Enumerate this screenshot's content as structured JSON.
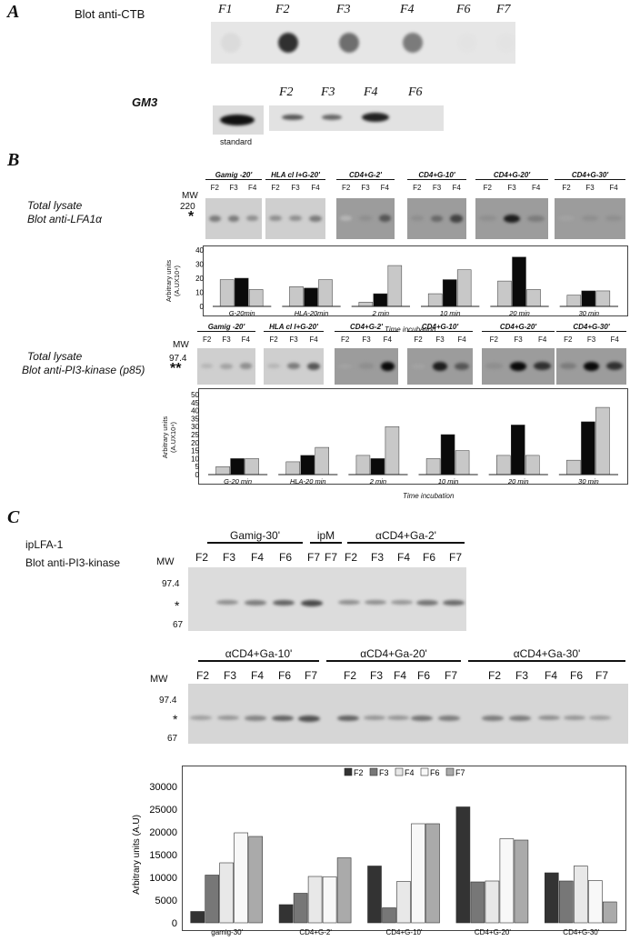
{
  "panelA": {
    "label": "A",
    "blot_title": "Blot anti-CTB",
    "dot_lanes": [
      "F1",
      "F2",
      "F3",
      "F4",
      "F6",
      "F7"
    ],
    "dot_intensity": [
      0.15,
      0.95,
      0.75,
      0.7,
      0.02,
      0.02
    ],
    "gm3_label": "GM3",
    "gm3_lanes": [
      "F2",
      "F3",
      "F4",
      "F6"
    ],
    "standard_label": "standard"
  },
  "panelB": {
    "label": "B",
    "lysate1": "Total lysate",
    "blot1": "Blot anti-LFA1α",
    "lysate2": "Total lysate",
    "blot2": "Blot anti-PI3-kinase (p85)",
    "mw": "MW",
    "mw_220": "220",
    "mw_974": "97.4",
    "star1": "*",
    "star2": "**",
    "groups1": [
      "Gamig -20'",
      "HLA cl I+G-20'",
      "CD4+G-2'",
      "CD4+G-10'",
      "CD4+G-20'",
      "CD4+G-30'"
    ],
    "groups2": [
      "Gamig -20'",
      "HLA cl I+G-20'",
      "CD4+G-2'",
      "CD4+G-10'",
      "CD4+G-20'",
      "CD4+G-30'"
    ],
    "lanes": [
      "F2",
      "F3",
      "F4"
    ],
    "ylabel1": "Arbitrary units (A.UX10⁴)",
    "ylabel2": "Arbitrary units (A.UX10⁴)",
    "xlabel": "Time incubation"
  },
  "panelC": {
    "label": "C",
    "ip": "ipLFA-1",
    "blot": "Blot anti-PI3-kinase",
    "mw": "MW",
    "mw_974": "97.4",
    "mw_67": "67",
    "star": "*",
    "row1_groups": [
      "Gamig-30'",
      "ipM",
      "αCD4+Ga-2'"
    ],
    "row1_lanes": [
      "F2",
      "F3",
      "F4",
      "F6",
      "F7",
      "F7",
      "F2",
      "F3",
      "F4",
      "F6",
      "F7"
    ],
    "row2_groups": [
      "αCD4+Ga-10'",
      "αCD4+Ga-20'",
      "αCD4+Ga-30'"
    ],
    "row2_lanes": [
      "F2",
      "F3",
      "F4",
      "F6",
      "F7",
      "F2",
      "F3",
      "F4",
      "F6",
      "F7",
      "F2",
      "F3",
      "F4",
      "F6",
      "F7"
    ]
  },
  "chart_data": [
    {
      "type": "bar",
      "categories": [
        "G-20min",
        "HLA-20min",
        "2 min",
        "10 min",
        "20 min",
        "30 min"
      ],
      "series": [
        {
          "name": "F2",
          "values": [
            19,
            14,
            3,
            9,
            18,
            8
          ]
        },
        {
          "name": "F3",
          "values": [
            20,
            13,
            9,
            19,
            35,
            11
          ]
        },
        {
          "name": "F4",
          "values": [
            12,
            19,
            29,
            26,
            12,
            11
          ]
        }
      ],
      "ylim": [
        0,
        40
      ],
      "yticks": [
        0,
        10,
        20,
        30,
        40
      ],
      "ylabel": "Arbitrary units (A.UX10⁴)",
      "xlabel": "Time incubation",
      "colors": [
        "#c8c8c8",
        "#0a0a0a",
        "#c8c8c8"
      ]
    },
    {
      "type": "bar",
      "categories": [
        "G-20 min",
        "HLA-20 min",
        "2 min",
        "10 min",
        "20 min",
        "30 min"
      ],
      "series": [
        {
          "name": "F2",
          "values": [
            5,
            8,
            12,
            10,
            12,
            9
          ]
        },
        {
          "name": "F3",
          "values": [
            10,
            12,
            10,
            25,
            31,
            33
          ]
        },
        {
          "name": "F4",
          "values": [
            10,
            17,
            30,
            15,
            12,
            42
          ]
        }
      ],
      "ylim": [
        0,
        50
      ],
      "yticks": [
        0,
        5,
        10,
        15,
        20,
        25,
        30,
        35,
        40,
        45,
        50
      ],
      "ylabel": "Arbitrary units (A.UX10⁴)",
      "xlabel": "Time incubation",
      "colors": [
        "#c8c8c8",
        "#0a0a0a",
        "#c8c8c8"
      ]
    },
    {
      "type": "bar",
      "categories": [
        "gamig-30'",
        "CD4+G-2'",
        "CD4+G-10'",
        "CD4+G-20'",
        "CD4+G-30'"
      ],
      "series": [
        {
          "name": "F2",
          "values": [
            2500,
            4000,
            12500,
            25500,
            11000
          ]
        },
        {
          "name": "F3",
          "values": [
            10500,
            6500,
            3300,
            9000,
            9200
          ]
        },
        {
          "name": "F4",
          "values": [
            13200,
            10200,
            9100,
            9200,
            12500
          ]
        },
        {
          "name": "F6",
          "values": [
            19800,
            10100,
            21800,
            18500,
            9300
          ]
        },
        {
          "name": "F7",
          "values": [
            19000,
            14300,
            21800,
            18200,
            4600
          ]
        }
      ],
      "ylim": [
        0,
        30000
      ],
      "yticks": [
        0,
        5000,
        10000,
        15000,
        20000,
        25000,
        30000
      ],
      "ylabel": "Arbitrary units (A.U)",
      "colors": [
        "#333333",
        "#777777",
        "#e8e8e8",
        "#f8f8f8",
        "#aaaaaa"
      ],
      "legend": "top-center"
    }
  ]
}
